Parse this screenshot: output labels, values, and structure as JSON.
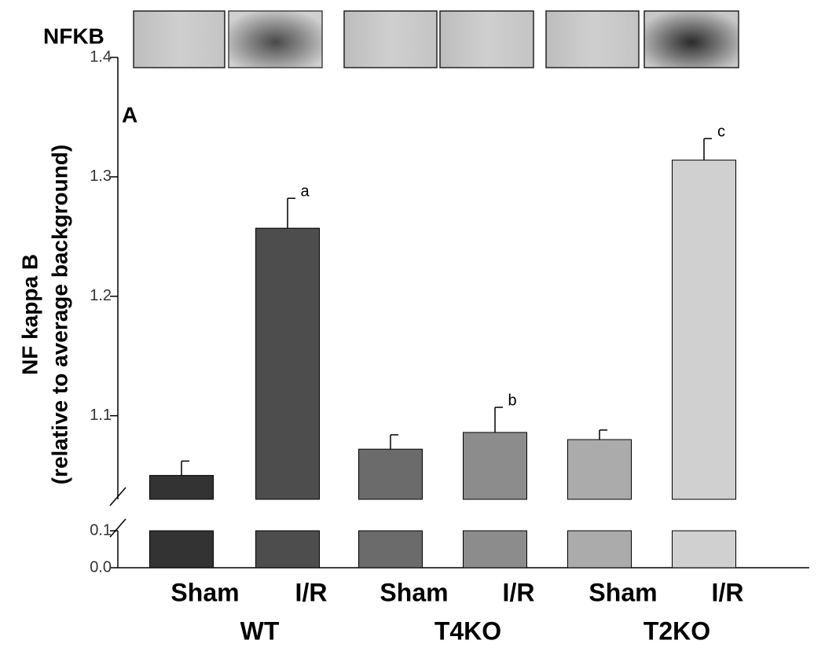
{
  "chart_data": {
    "type": "bar",
    "blot_label": "NFKB",
    "panel_label": "A",
    "ylabel": "NF kappa B",
    "ylabel_sub": "(relative to average background)",
    "categories": [
      "Sham",
      "I/R",
      "Sham",
      "I/R",
      "Sham",
      "I/R"
    ],
    "groups": [
      "WT",
      "T4KO",
      "T2KO"
    ],
    "values": [
      1.05,
      1.257,
      1.072,
      1.086,
      1.08,
      1.314
    ],
    "errors": [
      0.012,
      0.025,
      0.012,
      0.021,
      0.008,
      0.018
    ],
    "significance": [
      null,
      "a",
      null,
      "b",
      null,
      "c"
    ],
    "colors": [
      "#333333",
      "#4d4d4d",
      "#6b6b6b",
      "#8c8c8c",
      "#ababab",
      "#d0d0d0"
    ],
    "ylim": [
      1.03,
      1.4
    ],
    "yticks": [
      1.1,
      1.2,
      1.3,
      1.4
    ],
    "ylim_lower": [
      0,
      0.1
    ],
    "yticks_lower": [
      {
        "value": 0,
        "label": "0.0"
      },
      0.1
    ]
  }
}
